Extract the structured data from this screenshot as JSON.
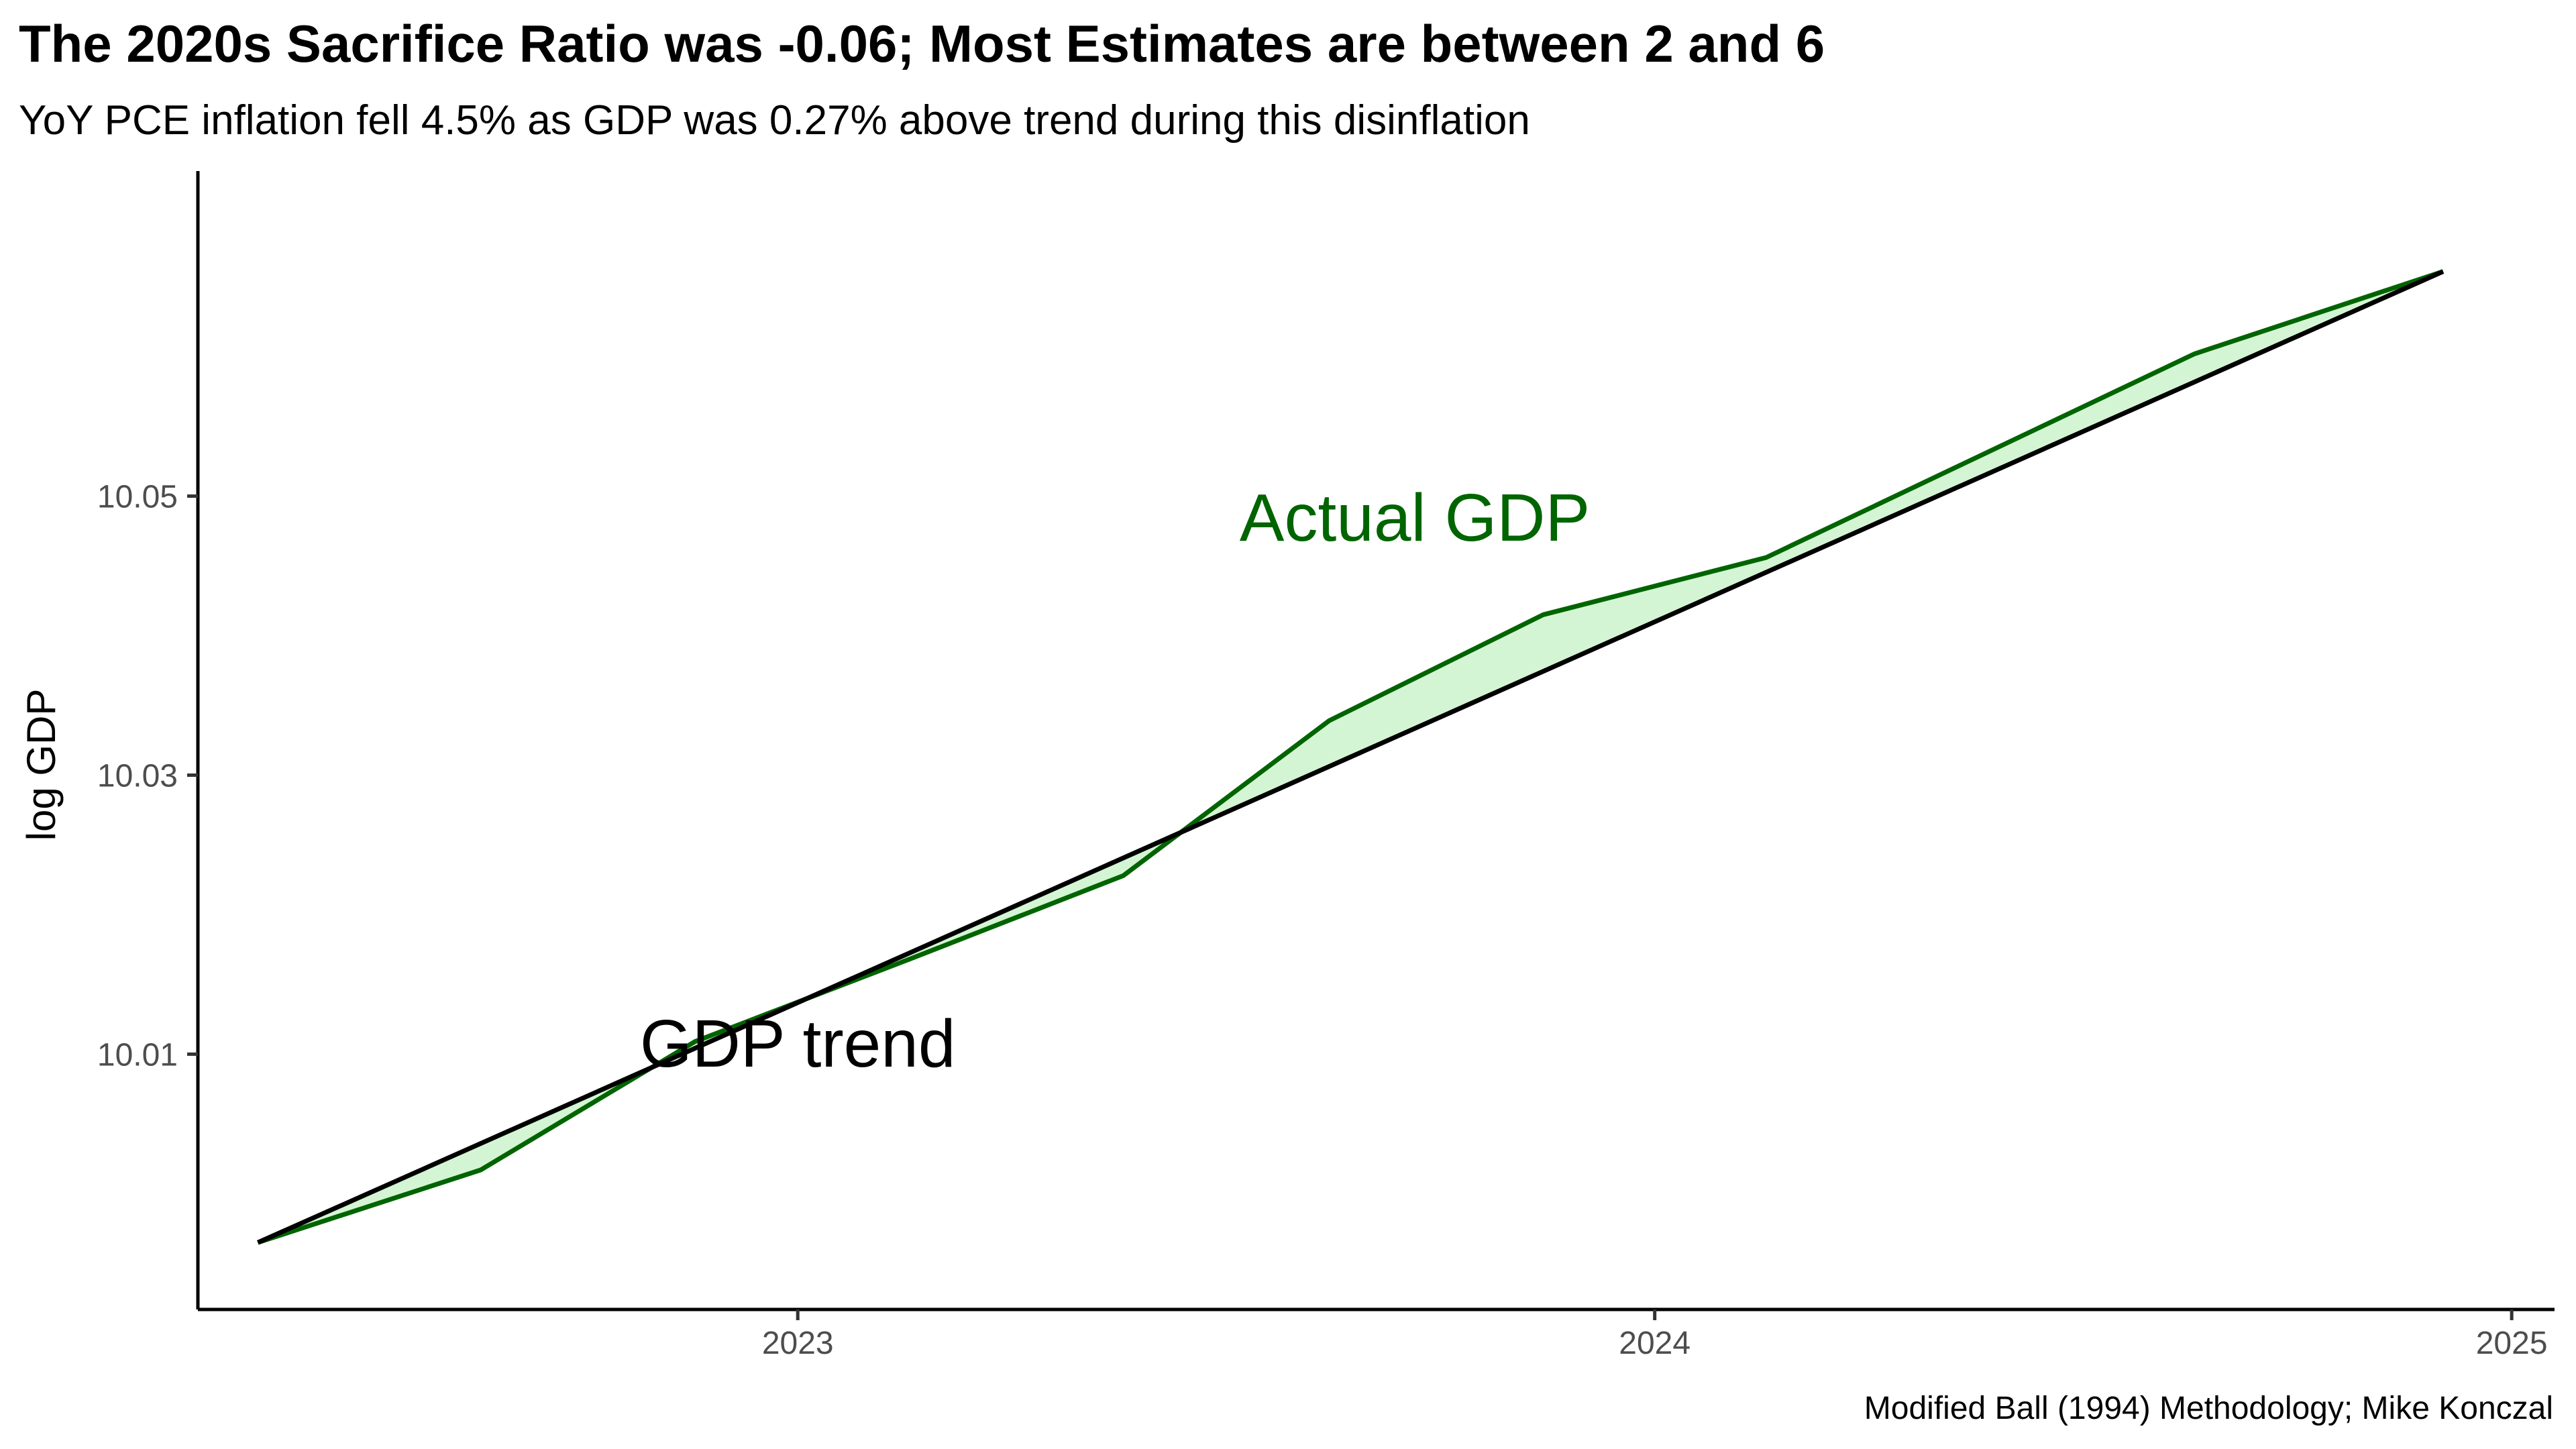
{
  "chart_data": {
    "type": "area",
    "title": "The 2020s Sacrifice Ratio was -0.06; Most Estimates are between 2 and 6",
    "subtitle": "YoY PCE inflation fell 4.5% as GDP was 0.27% above trend during this disinflation",
    "xlabel": "",
    "ylabel": "log GDP",
    "caption": "Modified Ball (1994) Methodology; Mike Konczal",
    "x_ticks": [
      "2023",
      "2024",
      "2025"
    ],
    "y_ticks": [
      "10.01",
      "10.03",
      "10.05"
    ],
    "xlim": [
      2022.3,
      2025.05
    ],
    "ylim": [
      9.9917,
      10.0733
    ],
    "grid": false,
    "series": [
      {
        "name": "Actual GDP",
        "color": "#006400",
        "x": [
          2022.37,
          2022.63,
          2022.88,
          2023.13,
          2023.38,
          2023.62,
          2023.87,
          2024.13,
          2024.63,
          2024.92
        ],
        "y": [
          9.9965,
          10.0017,
          10.0109,
          10.0168,
          10.0228,
          10.0339,
          10.0415,
          10.0456,
          10.0602,
          10.0661
        ]
      },
      {
        "name": "GDP trend",
        "color": "#000000",
        "x": [
          2022.37,
          2024.92
        ],
        "y": [
          9.9965,
          10.0661
        ]
      }
    ],
    "fill_color": "#d4f5d4",
    "annotations": [
      {
        "text": "Actual GDP",
        "x": 2023.72,
        "y": 10.0468,
        "color": "#006400"
      },
      {
        "text": "GDP trend",
        "x": 2023.0,
        "y": 10.0091,
        "color": "#000000"
      }
    ]
  }
}
